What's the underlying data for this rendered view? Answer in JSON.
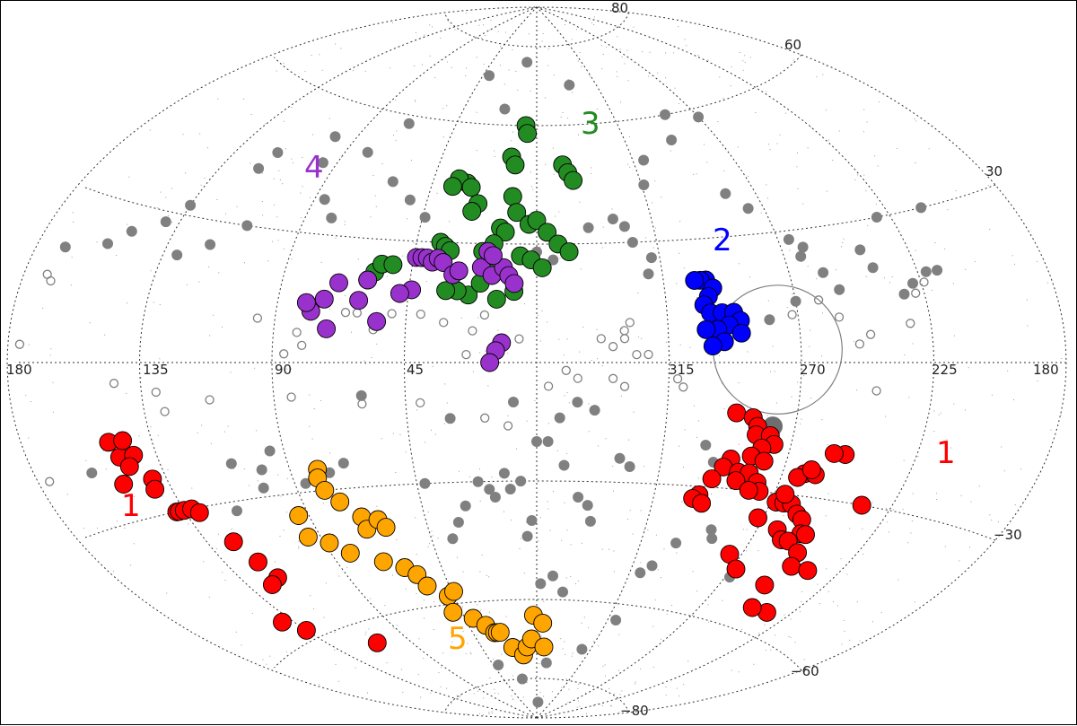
{
  "chart_data": {
    "type": "scatter",
    "projection": "aitoff",
    "title": "",
    "xlabel": "",
    "ylabel": "",
    "grid": true,
    "lon_range": [
      180,
      -180
    ],
    "lat_range": [
      -90,
      90
    ],
    "lon_tick_labels": [
      "180",
      "135",
      "90",
      "45",
      "315",
      "270",
      "225",
      "180"
    ],
    "lat_tick_labels": [
      "80",
      "60",
      "30",
      "−30",
      "−60",
      "−80"
    ],
    "groups": [
      {
        "label": "1",
        "color": "#ff0000",
        "points": [
          [
            291,
            -12
          ],
          [
            285,
            -13
          ],
          [
            283,
            -15
          ],
          [
            283,
            -17
          ],
          [
            278,
            -17
          ],
          [
            276,
            -19
          ],
          [
            280,
            -20
          ],
          [
            283,
            -22
          ],
          [
            278,
            -23
          ],
          [
            290,
            -23
          ],
          [
            292,
            -25
          ],
          [
            286,
            -26
          ],
          [
            282,
            -26
          ],
          [
            286,
            -28
          ],
          [
            295,
            -28
          ],
          [
            278,
            -28
          ],
          [
            276,
            -30
          ],
          [
            280,
            -30
          ],
          [
            268,
            -32
          ],
          [
            265,
            -32
          ],
          [
            262,
            -32
          ],
          [
            258,
            -34
          ],
          [
            255,
            -35
          ],
          [
            262,
            -38
          ],
          [
            258,
            -40
          ],
          [
            252,
            -38
          ],
          [
            250,
            -38
          ],
          [
            255,
            -40
          ],
          [
            248,
            -42
          ],
          [
            246,
            -45
          ],
          [
            238,
            -45
          ],
          [
            250,
            -50
          ],
          [
            236,
            -55
          ],
          [
            245,
            -55
          ],
          [
            275,
            -45
          ],
          [
            268,
            -48
          ],
          [
            298,
            -32
          ],
          [
            300,
            -33
          ],
          [
            296,
            -34
          ],
          [
            272,
            -36
          ],
          [
            236,
            -30
          ],
          [
            250,
            -20
          ],
          [
            254,
            -20
          ],
          [
            262,
            -25
          ],
          [
            264,
            -26
          ],
          [
            266,
            -30
          ],
          [
            258,
            -25
          ],
          [
            260,
            -24
          ],
          [
            150,
            -15
          ],
          [
            148,
            -18
          ],
          [
            145,
            -15
          ],
          [
            143,
            -18
          ],
          [
            146,
            -20
          ],
          [
            151,
            -23
          ],
          [
            140,
            -23
          ],
          [
            141,
            -25
          ],
          [
            138,
            -30
          ],
          [
            137,
            -30
          ],
          [
            135,
            -30
          ],
          [
            132,
            -30
          ],
          [
            130,
            -31
          ],
          [
            125,
            -38
          ],
          [
            122,
            -43
          ],
          [
            120,
            -47
          ],
          [
            125,
            -48
          ],
          [
            135,
            -58
          ],
          [
            140,
            -55
          ],
          [
            110,
            -65
          ]
        ]
      },
      {
        "label": "2",
        "color": "#0000ff",
        "points": [
          [
            300,
            20
          ],
          [
            302,
            20
          ],
          [
            304,
            20
          ],
          [
            298,
            18
          ],
          [
            300,
            16
          ],
          [
            302,
            14
          ],
          [
            300,
            12
          ],
          [
            296,
            12
          ],
          [
            292,
            12
          ],
          [
            290,
            10
          ],
          [
            294,
            9
          ],
          [
            298,
            8
          ],
          [
            302,
            8
          ],
          [
            296,
            5
          ],
          [
            300,
            4
          ],
          [
            290,
            7
          ]
        ]
      },
      {
        "label": "3",
        "color": "#228b22",
        "points": [
          [
            30,
            45
          ],
          [
            34,
            46
          ],
          [
            28,
            44
          ],
          [
            36,
            44
          ],
          [
            24,
            40
          ],
          [
            26,
            38
          ],
          [
            12,
            52
          ],
          [
            10,
            50
          ],
          [
            6,
            60
          ],
          [
            5,
            58
          ],
          [
            348,
            50
          ],
          [
            346,
            48
          ],
          [
            344,
            46
          ],
          [
            10,
            42
          ],
          [
            8,
            38
          ],
          [
            14,
            34
          ],
          [
            12,
            33
          ],
          [
            16,
            30
          ],
          [
            20,
            28
          ],
          [
            36,
            30
          ],
          [
            34,
            29
          ],
          [
            32,
            28
          ],
          [
            3,
            35
          ],
          [
            0,
            36
          ],
          [
            356,
            33
          ],
          [
            352,
            30
          ],
          [
            348,
            28
          ],
          [
            6,
            27
          ],
          [
            2,
            26
          ],
          [
            358,
            24
          ],
          [
            60,
            20
          ],
          [
            58,
            22
          ],
          [
            56,
            24
          ],
          [
            52,
            24
          ],
          [
            8,
            18
          ],
          [
            14,
            16
          ],
          [
            24,
            17
          ],
          [
            28,
            18
          ],
          [
            32,
            18
          ],
          [
            16,
            22
          ],
          [
            18,
            23
          ],
          [
            20,
            20
          ]
        ]
      },
      {
        "label": "4",
        "color": "#9932cc",
        "points": [
          [
            44,
            26
          ],
          [
            42,
            26
          ],
          [
            40,
            26
          ],
          [
            38,
            25
          ],
          [
            36,
            26
          ],
          [
            34,
            25
          ],
          [
            30,
            22
          ],
          [
            28,
            23
          ],
          [
            20,
            24
          ],
          [
            16,
            22
          ],
          [
            12,
            24
          ],
          [
            10,
            22
          ],
          [
            8,
            20
          ],
          [
            18,
            28
          ],
          [
            16,
            27
          ],
          [
            44,
            18
          ],
          [
            48,
            17
          ],
          [
            60,
            20
          ],
          [
            70,
            19
          ],
          [
            74,
            15
          ],
          [
            78,
            12
          ],
          [
            80,
            14
          ],
          [
            72,
            8
          ],
          [
            62,
            15
          ],
          [
            55,
            10
          ],
          [
            12,
            5
          ],
          [
            14,
            3
          ],
          [
            16,
            0
          ]
        ]
      },
      {
        "label": "5",
        "color": "#ffa500",
        "points": [
          [
            80,
            -25
          ],
          [
            81,
            -27
          ],
          [
            80,
            -30
          ],
          [
            76,
            -33
          ],
          [
            70,
            -37
          ],
          [
            70,
            -40
          ],
          [
            64,
            -38
          ],
          [
            62,
            -40
          ],
          [
            94,
            -35
          ],
          [
            95,
            -40
          ],
          [
            88,
            -42
          ],
          [
            82,
            -45
          ],
          [
            70,
            -48
          ],
          [
            62,
            -50
          ],
          [
            58,
            -52
          ],
          [
            56,
            -55
          ],
          [
            48,
            -58
          ],
          [
            44,
            -57
          ],
          [
            50,
            -62
          ],
          [
            40,
            -64
          ],
          [
            34,
            -66
          ],
          [
            30,
            -68
          ],
          [
            28,
            -68
          ],
          [
            26,
            -68
          ],
          [
            20,
            -72
          ],
          [
            12,
            -74
          ],
          [
            8,
            -72
          ],
          [
            4,
            -70
          ],
          [
            2,
            -64
          ],
          [
            356,
            -66
          ],
          [
            354,
            -72
          ]
        ]
      }
    ],
    "background_sources": {
      "color": "#808080",
      "points": [
        [
          335,
          70
        ],
        [
          20,
          64
        ],
        [
          40,
          72
        ],
        [
          10,
          76
        ],
        [
          70,
          58
        ],
        [
          80,
          50
        ],
        [
          100,
          52
        ],
        [
          120,
          42
        ],
        [
          118,
          46
        ],
        [
          96,
          46
        ],
        [
          135,
          32
        ],
        [
          140,
          28
        ],
        [
          150,
          25
        ],
        [
          156,
          22
        ],
        [
          170,
          20
        ],
        [
          130,
          22
        ],
        [
          120,
          25
        ],
        [
          110,
          30
        ],
        [
          80,
          34
        ],
        [
          86,
          38
        ],
        [
          62,
          44
        ],
        [
          52,
          40
        ],
        [
          44,
          36
        ],
        [
          0,
          28
        ],
        [
          354,
          26
        ],
        [
          340,
          34
        ],
        [
          330,
          36
        ],
        [
          326,
          34
        ],
        [
          324,
          30
        ],
        [
          320,
          22
        ],
        [
          318,
          26
        ],
        [
          314,
          44
        ],
        [
          310,
          50
        ],
        [
          292,
          54
        ],
        [
          286,
          60
        ],
        [
          270,
          58
        ],
        [
          282,
          40
        ],
        [
          276,
          36
        ],
        [
          266,
          28
        ],
        [
          262,
          26
        ],
        [
          264,
          24
        ],
        [
          258,
          20
        ],
        [
          254,
          16
        ],
        [
          270,
          14
        ],
        [
          280,
          10
        ],
        [
          242,
          24
        ],
        [
          240,
          20
        ],
        [
          232,
          14
        ],
        [
          228,
          16
        ],
        [
          222,
          18
        ],
        [
          218,
          18
        ],
        [
          212,
          30
        ],
        [
          230,
          30
        ],
        [
          160,
          -20
        ],
        [
          134,
          -30
        ],
        [
          116,
          -32
        ],
        [
          95,
          -20
        ],
        [
          60,
          -8
        ],
        [
          30,
          -14
        ],
        [
          8,
          -10
        ],
        [
          352,
          -14
        ],
        [
          346,
          -10
        ],
        [
          340,
          -12
        ],
        [
          330,
          -24
        ],
        [
          326,
          -26
        ],
        [
          300,
          -20
        ],
        [
          296,
          -24
        ],
        [
          288,
          -40
        ],
        [
          286,
          -42
        ],
        [
          300,
          -44
        ],
        [
          306,
          -50
        ],
        [
          310,
          -52
        ],
        [
          268,
          -50
        ],
        [
          6,
          -30
        ],
        [
          10,
          -32
        ],
        [
          12,
          -28
        ],
        [
          0,
          -20
        ],
        [
          356,
          -20
        ],
        [
          350,
          -26
        ],
        [
          344,
          -34
        ],
        [
          340,
          -36
        ],
        [
          338,
          -40
        ],
        [
          28,
          -36
        ],
        [
          32,
          -40
        ],
        [
          36,
          -44
        ],
        [
          22,
          -30
        ],
        [
          18,
          -32
        ],
        [
          16,
          -34
        ],
        [
          42,
          -30
        ],
        [
          70,
          -24
        ],
        [
          76,
          -26
        ],
        [
          86,
          -28
        ],
        [
          100,
          -24
        ],
        [
          102,
          -28
        ],
        [
          110,
          -22
        ],
        [
          358,
          -56
        ],
        [
          352,
          -54
        ],
        [
          346,
          -58
        ],
        [
          2,
          -40
        ],
        [
          4,
          -44
        ],
        [
          350,
          -76
        ],
        [
          356,
          -86
        ],
        [
          20,
          -80
        ],
        [
          40,
          -76
        ],
        [
          310,
          -64
        ],
        [
          322,
          -72
        ]
      ]
    },
    "open_sources": {
      "color": "#808080",
      "points": [
        [
          172,
          15
        ],
        [
          170,
          14
        ],
        [
          176,
          3
        ],
        [
          176,
          -20
        ],
        [
          144,
          -4
        ],
        [
          130,
          -6
        ],
        [
          128,
          -10
        ],
        [
          112,
          -8
        ],
        [
          96,
          10
        ],
        [
          82,
          7
        ],
        [
          80,
          4
        ],
        [
          86,
          2
        ],
        [
          66,
          12
        ],
        [
          62,
          12
        ],
        [
          56,
          8
        ],
        [
          50,
          12
        ],
        [
          40,
          12
        ],
        [
          32,
          10
        ],
        [
          24,
          2
        ],
        [
          22,
          8
        ],
        [
          18,
          12
        ],
        [
          6,
          6
        ],
        [
          338,
          6
        ],
        [
          334,
          4
        ],
        [
          330,
          6
        ],
        [
          330,
          8
        ],
        [
          328,
          10
        ],
        [
          326,
          2
        ],
        [
          322,
          2
        ],
        [
          272,
          11
        ],
        [
          262,
          14
        ],
        [
          256,
          10
        ],
        [
          250,
          4
        ],
        [
          244,
          -6
        ],
        [
          246,
          6
        ],
        [
          232,
          8
        ],
        [
          228,
          14
        ],
        [
          224,
          16
        ],
        [
          84,
          -8
        ],
        [
          60,
          -10
        ],
        [
          40,
          -10
        ],
        [
          18,
          -14
        ],
        [
          10,
          -16
        ],
        [
          356,
          -6
        ],
        [
          350,
          -2
        ],
        [
          346,
          -4
        ],
        [
          334,
          -4
        ],
        [
          330,
          -6
        ],
        [
          312,
          -4
        ],
        [
          310,
          -6
        ]
      ]
    },
    "region_outline": {
      "shape": "circle",
      "center": [
        278,
        3
      ],
      "radius_deg": 15,
      "color": "#808080"
    }
  },
  "labels": {
    "g1_right": "1",
    "g1_left": "1",
    "g2": "2",
    "g3": "3",
    "g4": "4",
    "g5": "5"
  }
}
